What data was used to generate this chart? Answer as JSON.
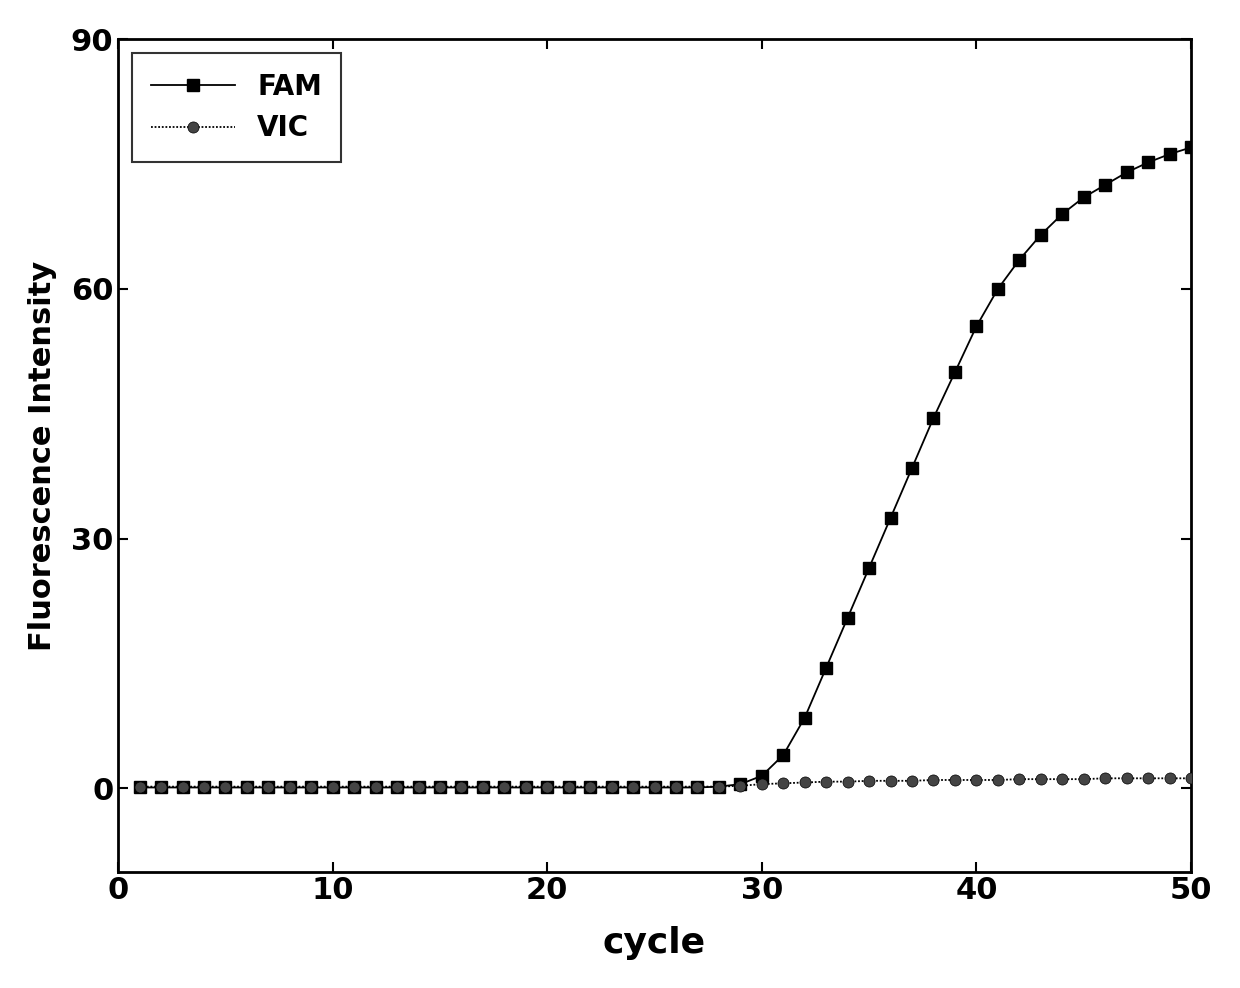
{
  "title": "",
  "xlabel": "cycle",
  "ylabel": "Fluorescence Intensity",
  "xlim": [
    0,
    50
  ],
  "ylim": [
    -10,
    90
  ],
  "yticks": [
    0,
    30,
    60,
    90
  ],
  "xticks": [
    0,
    10,
    20,
    30,
    40,
    50
  ],
  "fam_color": "#000000",
  "vic_color": "#000000",
  "background_color": "#ffffff",
  "xlabel_fontsize": 26,
  "ylabel_fontsize": 22,
  "tick_fontsize": 22,
  "legend_fontsize": 20,
  "line_width": 1.3,
  "fam_values": [
    0.1,
    0.1,
    0.1,
    0.1,
    0.1,
    0.1,
    0.1,
    0.1,
    0.1,
    0.1,
    0.1,
    0.1,
    0.1,
    0.1,
    0.1,
    0.1,
    0.1,
    0.1,
    0.1,
    0.1,
    0.1,
    0.1,
    0.1,
    0.1,
    0.1,
    0.1,
    0.1,
    0.2,
    0.5,
    1.5,
    4.0,
    8.5,
    14.5,
    20.5,
    26.5,
    32.5,
    38.5,
    44.5,
    50.0,
    55.5,
    60.0,
    63.5,
    66.5,
    69.0,
    71.0,
    72.5,
    74.0,
    75.2,
    76.2,
    77.0
  ],
  "vic_values": [
    0.2,
    0.2,
    0.2,
    0.2,
    0.2,
    0.2,
    0.2,
    0.2,
    0.2,
    0.2,
    0.2,
    0.2,
    0.2,
    0.2,
    0.2,
    0.2,
    0.2,
    0.2,
    0.2,
    0.2,
    0.2,
    0.2,
    0.2,
    0.2,
    0.2,
    0.2,
    0.2,
    0.2,
    0.3,
    0.5,
    0.6,
    0.7,
    0.8,
    0.8,
    0.9,
    0.9,
    0.9,
    1.0,
    1.0,
    1.0,
    1.0,
    1.1,
    1.1,
    1.1,
    1.1,
    1.2,
    1.2,
    1.2,
    1.2,
    1.2
  ]
}
